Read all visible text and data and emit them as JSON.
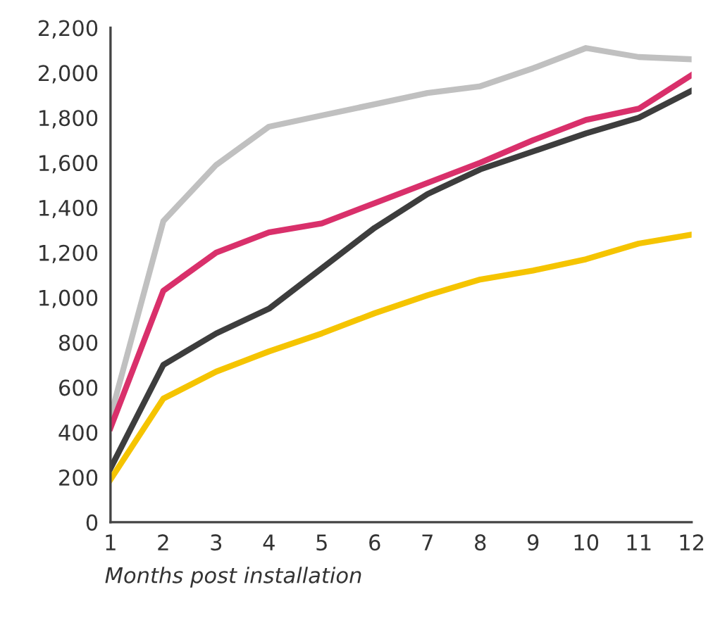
{
  "chart_data": {
    "type": "line",
    "xlabel": "Months post installation",
    "x": [
      1,
      2,
      3,
      4,
      5,
      6,
      7,
      8,
      9,
      10,
      11,
      12
    ],
    "series": [
      {
        "color": "#c0c0c0",
        "values": [
          470,
          1340,
          1590,
          1760,
          1810,
          1860,
          1910,
          1940,
          2020,
          2110,
          2070,
          2060
        ]
      },
      {
        "color": "#d9306b",
        "values": [
          420,
          1030,
          1200,
          1290,
          1330,
          1420,
          1510,
          1600,
          1700,
          1790,
          1840,
          1990
        ]
      },
      {
        "color": "#3d3d3d",
        "values": [
          240,
          700,
          840,
          950,
          1130,
          1310,
          1460,
          1570,
          1650,
          1730,
          1800,
          1920
        ]
      },
      {
        "color": "#f5c400",
        "values": [
          190,
          550,
          670,
          760,
          840,
          930,
          1010,
          1080,
          1120,
          1170,
          1240,
          1280
        ]
      }
    ],
    "xlim": [
      1,
      12
    ],
    "xticks": [
      1,
      2,
      3,
      4,
      5,
      6,
      7,
      8,
      9,
      10,
      11,
      12
    ],
    "ylim": [
      0,
      2200
    ],
    "yticks": [
      0,
      200,
      400,
      600,
      800,
      {
        "value": 1000,
        "label": "1,000"
      },
      {
        "value": 1200,
        "label": "1,200"
      },
      {
        "value": 1400,
        "label": "1,400"
      },
      {
        "value": 1600,
        "label": "1,600"
      },
      {
        "value": 1800,
        "label": "1,800"
      },
      {
        "value": 2000,
        "label": "2,000"
      },
      {
        "value": 2200,
        "label": "2,200"
      }
    ],
    "grid": false,
    "legend": false,
    "marker": "none",
    "line_style": "solid"
  }
}
